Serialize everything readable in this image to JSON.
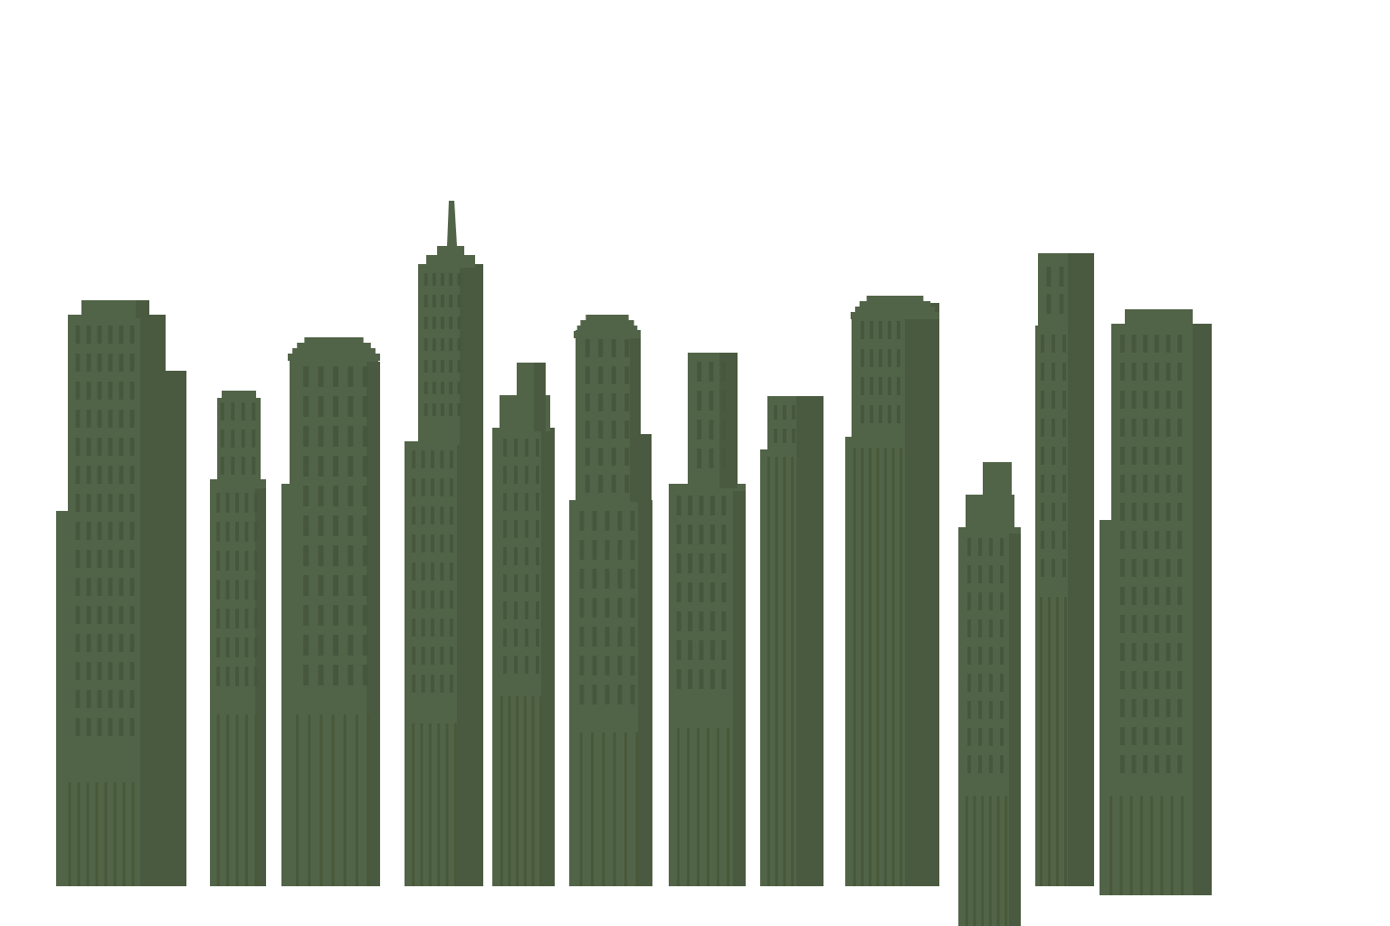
{
  "scene": {
    "background": "#ffffff",
    "colors": {
      "building_body": "#526448",
      "building_shade": "#4a5a40",
      "window": "#47573e",
      "pilaster": "#485839"
    },
    "buildings": [
      {
        "name": "building-1",
        "shape": "stepped-dome"
      },
      {
        "name": "building-2",
        "shape": "narrow-dome"
      },
      {
        "name": "building-3",
        "shape": "dome"
      },
      {
        "name": "building-4",
        "shape": "spire"
      },
      {
        "name": "building-5",
        "shape": "stepped-tower"
      },
      {
        "name": "building-6",
        "shape": "dome"
      },
      {
        "name": "building-7",
        "shape": "stepped-tower"
      },
      {
        "name": "building-8",
        "shape": "stepped-tower"
      },
      {
        "name": "building-9",
        "shape": "stepped-dome"
      },
      {
        "name": "building-10",
        "shape": "stepped-tower"
      },
      {
        "name": "building-11",
        "shape": "stepped-tower"
      },
      {
        "name": "building-12",
        "shape": "stepped-dome"
      }
    ]
  }
}
